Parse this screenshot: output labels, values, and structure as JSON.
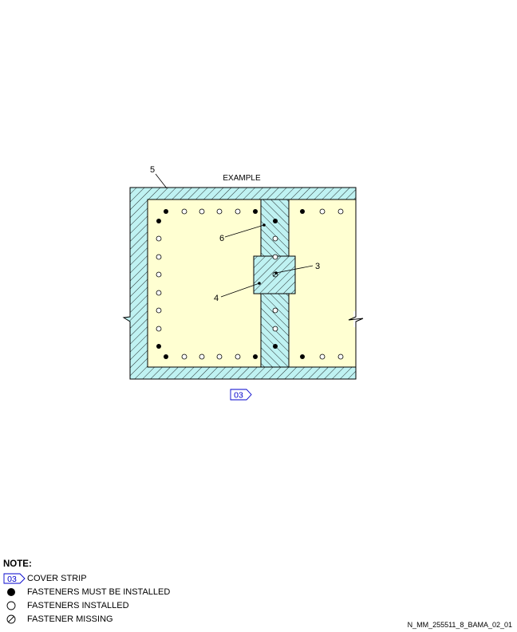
{
  "diagram": {
    "title": "EXAMPLE",
    "callouts": [
      "5",
      "6",
      "3",
      "4"
    ],
    "reference_tag": "03",
    "colors": {
      "skin_fill": "#FFFFD2",
      "hatch_fill": "#BFF2F2",
      "tag_stroke": "#0000CC",
      "tag_text": "#0000CC"
    }
  },
  "legend": {
    "title": "NOTE:",
    "items": [
      {
        "symbol": "tag-03",
        "tag": "03",
        "label": "COVER STRIP"
      },
      {
        "symbol": "filled-circle-icon",
        "label": "FASTENERS MUST BE INSTALLED"
      },
      {
        "symbol": "open-circle-icon",
        "label": "FASTENERS INSTALLED"
      },
      {
        "symbol": "slashed-circle-icon",
        "label": "FASTENER MISSING"
      }
    ]
  },
  "doc_id": "N_MM_255511_8_BAMA_02_01"
}
